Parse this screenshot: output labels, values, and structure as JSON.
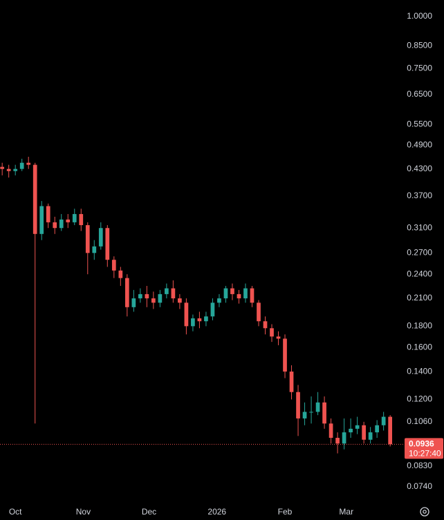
{
  "chart_data": {
    "type": "candlestick",
    "log_scale": true,
    "up_color": "#26a69a",
    "down_color": "#ef5350",
    "x": [
      -6,
      -3,
      0,
      3,
      6,
      9,
      12,
      15,
      18,
      21,
      24,
      27,
      30,
      33,
      36,
      39,
      42,
      45,
      48,
      51,
      54,
      57,
      60,
      63,
      66,
      69,
      72,
      75,
      78,
      81,
      84,
      87,
      90,
      93,
      96,
      99,
      102,
      105,
      108,
      111,
      114,
      117,
      120,
      123,
      126,
      129,
      132,
      135,
      138,
      141,
      144,
      147,
      150,
      153,
      156,
      159,
      162,
      165,
      168,
      171
    ],
    "open": [
      0.435,
      0.43,
      0.425,
      0.43,
      0.445,
      0.44,
      0.3,
      0.35,
      0.32,
      0.31,
      0.325,
      0.32,
      0.335,
      0.315,
      0.27,
      0.28,
      0.31,
      0.26,
      0.245,
      0.235,
      0.2,
      0.21,
      0.215,
      0.21,
      0.205,
      0.215,
      0.222,
      0.21,
      0.205,
      0.18,
      0.188,
      0.185,
      0.19,
      0.205,
      0.21,
      0.222,
      0.215,
      0.21,
      0.222,
      0.205,
      0.185,
      0.178,
      0.17,
      0.168,
      0.14,
      0.125,
      0.108,
      0.112,
      0.112,
      0.118,
      0.105,
      0.097,
      0.094,
      0.1,
      0.102,
      0.104,
      0.096,
      0.1,
      0.104,
      0.109
    ],
    "high": [
      0.445,
      0.44,
      0.44,
      0.455,
      0.46,
      0.445,
      0.36,
      0.355,
      0.33,
      0.335,
      0.335,
      0.345,
      0.345,
      0.32,
      0.29,
      0.32,
      0.315,
      0.265,
      0.25,
      0.24,
      0.22,
      0.222,
      0.225,
      0.218,
      0.22,
      0.228,
      0.232,
      0.215,
      0.21,
      0.192,
      0.195,
      0.195,
      0.21,
      0.215,
      0.225,
      0.228,
      0.22,
      0.228,
      0.225,
      0.208,
      0.19,
      0.182,
      0.175,
      0.172,
      0.145,
      0.13,
      0.118,
      0.122,
      0.125,
      0.122,
      0.108,
      0.1,
      0.108,
      0.108,
      0.109,
      0.106,
      0.103,
      0.107,
      0.112,
      0.11
    ],
    "low": [
      0.415,
      0.41,
      0.415,
      0.425,
      0.43,
      0.105,
      0.29,
      0.31,
      0.3,
      0.305,
      0.31,
      0.315,
      0.305,
      0.24,
      0.26,
      0.275,
      0.25,
      0.235,
      0.225,
      0.19,
      0.195,
      0.205,
      0.2,
      0.198,
      0.2,
      0.21,
      0.205,
      0.198,
      0.172,
      0.175,
      0.178,
      0.18,
      0.186,
      0.2,
      0.205,
      0.208,
      0.204,
      0.205,
      0.2,
      0.18,
      0.172,
      0.165,
      0.162,
      0.135,
      0.12,
      0.098,
      0.104,
      0.105,
      0.11,
      0.102,
      0.094,
      0.089,
      0.091,
      0.097,
      0.099,
      0.094,
      0.094,
      0.097,
      0.101,
      0.0925
    ],
    "close": [
      0.43,
      0.425,
      0.43,
      0.445,
      0.44,
      0.3,
      0.35,
      0.32,
      0.31,
      0.325,
      0.32,
      0.335,
      0.315,
      0.27,
      0.28,
      0.31,
      0.26,
      0.245,
      0.235,
      0.2,
      0.21,
      0.215,
      0.21,
      0.205,
      0.215,
      0.222,
      0.21,
      0.205,
      0.18,
      0.188,
      0.185,
      0.19,
      0.205,
      0.21,
      0.222,
      0.215,
      0.21,
      0.222,
      0.205,
      0.185,
      0.178,
      0.17,
      0.168,
      0.14,
      0.125,
      0.108,
      0.112,
      0.112,
      0.118,
      0.105,
      0.097,
      0.094,
      0.1,
      0.102,
      0.104,
      0.096,
      0.1,
      0.104,
      0.109,
      0.0936
    ],
    "xlim": [
      -7,
      176
    ],
    "xticks": [
      {
        "value": 0,
        "label": "Oct"
      },
      {
        "value": 31,
        "label": "Nov"
      },
      {
        "value": 61,
        "label": "Dec"
      },
      {
        "value": 92,
        "label": "2026"
      },
      {
        "value": 123,
        "label": "Feb"
      },
      {
        "value": 151,
        "label": "Mar"
      }
    ],
    "ylim": [
      0.0672,
      1.096
    ],
    "yticks": [
      {
        "value": 1,
        "label": "1.0000"
      },
      {
        "value": 0.85,
        "label": "0.8500"
      },
      {
        "value": 0.75,
        "label": "0.7500"
      },
      {
        "value": 0.65,
        "label": "0.6500"
      },
      {
        "value": 0.55,
        "label": "0.5500"
      },
      {
        "value": 0.49,
        "label": "0.4900"
      },
      {
        "value": 0.43,
        "label": "0.4300"
      },
      {
        "value": 0.37,
        "label": "0.3700"
      },
      {
        "value": 0.31,
        "label": "0.3100"
      },
      {
        "value": 0.27,
        "label": "0.2700"
      },
      {
        "value": 0.24,
        "label": "0.2400"
      },
      {
        "value": 0.21,
        "label": "0.2100"
      },
      {
        "value": 0.18,
        "label": "0.1800"
      },
      {
        "value": 0.16,
        "label": "0.1600"
      },
      {
        "value": 0.14,
        "label": "0.1400"
      },
      {
        "value": 0.12,
        "label": "0.1200"
      },
      {
        "value": 0.106,
        "label": "0.1060"
      },
      {
        "value": 0.083,
        "label": "0.0830"
      },
      {
        "value": 0.074,
        "label": "0.0740"
      }
    ],
    "last_price": 0.0936,
    "countdown": "10:27:40"
  }
}
